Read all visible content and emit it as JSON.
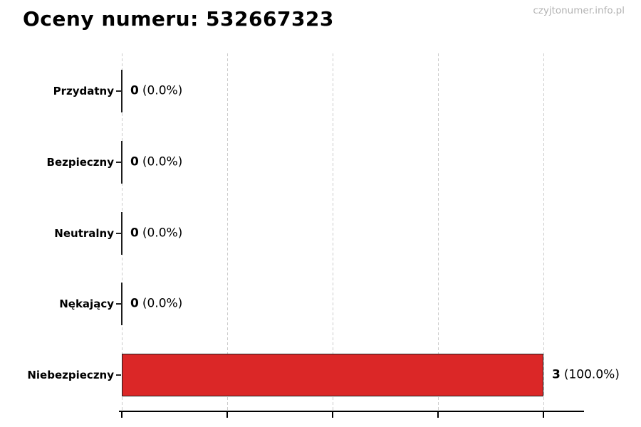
{
  "header": {
    "title": "Oceny numeru: 532667323",
    "watermark": "czyjtonumer.info.pl"
  },
  "chart_data": {
    "type": "bar",
    "orientation": "horizontal",
    "title": "Oceny numeru: 532667323",
    "categories": [
      "Przydatny",
      "Bezpieczny",
      "Neutralny",
      "Nękający",
      "Niebezpieczny"
    ],
    "values": [
      0,
      0,
      0,
      0,
      3
    ],
    "value_labels": [
      {
        "count": "0",
        "pct": "(0.0%)"
      },
      {
        "count": "0",
        "pct": "(0.0%)"
      },
      {
        "count": "0",
        "pct": "(0.0%)"
      },
      {
        "count": "0",
        "pct": "(0.0%)"
      },
      {
        "count": "3",
        "pct": "(100.0%)"
      }
    ],
    "xlabel": "",
    "ylabel": "",
    "xlim": [
      0,
      3.3
    ],
    "x_ticks": [
      0,
      0.75,
      1.5,
      2.25,
      3.0
    ],
    "x_tick_labels_visible": false,
    "grid": "vertical-dashed",
    "legend": "none"
  },
  "colors": {
    "bar_fill": "#db2727",
    "bar_edge": "#1c1c1c",
    "grid": "#cccccc",
    "axis": "#000000",
    "title_text": "#000000",
    "label_text": "#000000",
    "watermark_text": "#b3b3b3"
  }
}
